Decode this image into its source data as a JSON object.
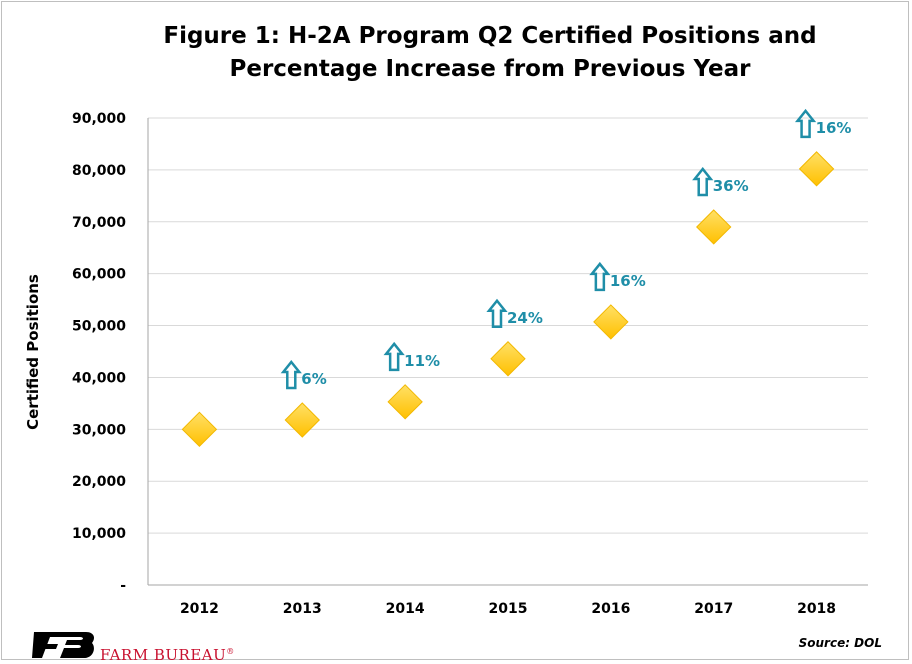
{
  "chart_data": {
    "type": "scatter",
    "title_line1": "Figure 1: H-2A Program Q2 Certified Positions and",
    "title_line2": "Percentage Increase from Previous Year",
    "ylabel": "Certified Positions",
    "xlabel": "",
    "categories": [
      "2012",
      "2013",
      "2014",
      "2015",
      "2016",
      "2017",
      "2018"
    ],
    "values": [
      30000,
      31800,
      35300,
      43600,
      50700,
      69000,
      80200
    ],
    "pct_increase": [
      "",
      "6%",
      "11%",
      "24%",
      "16%",
      "36%",
      "16%"
    ],
    "ylim": [
      0,
      90000
    ],
    "yticks": [
      0,
      10000,
      20000,
      30000,
      40000,
      50000,
      60000,
      70000,
      80000,
      90000
    ],
    "ytick_labels": [
      "-",
      "10,000",
      "20,000",
      "30,000",
      "40,000",
      "50,000",
      "60,000",
      "70,000",
      "80,000",
      "90,000"
    ],
    "grid": true,
    "marker_color": "#ffc000",
    "annotation_color": "#1f8ea8"
  },
  "source": "Source: DOL",
  "logo": {
    "text": "FARM BUREAU",
    "mark": "®",
    "icon": "farm-bureau-fb-logo"
  }
}
